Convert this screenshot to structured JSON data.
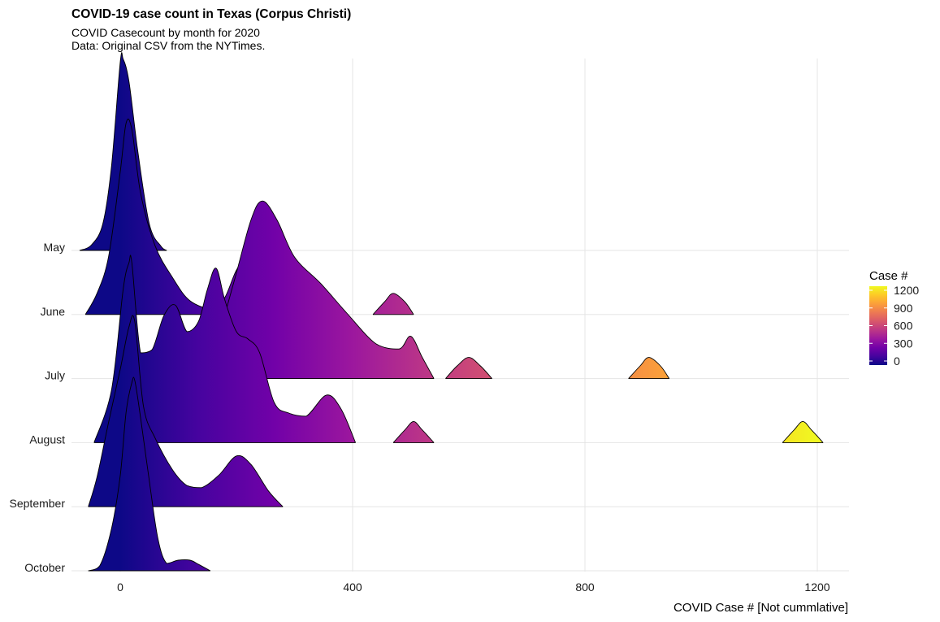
{
  "chart_data": {
    "type": "ridgeline",
    "title": "COVID-19 case count in Texas (Corpus Christi)",
    "subtitle_lines": [
      "COVID Casecount by month for 2020",
      "Data: Original CSV from the NYTimes."
    ],
    "xlabel": "COVID Case # [Not cummlative]",
    "ylabel": "",
    "xlim": [
      -80,
      1250
    ],
    "x_ticks": [
      0,
      400,
      800,
      1200
    ],
    "grid": true,
    "categories": [
      "May",
      "June",
      "July",
      "August",
      "September",
      "October"
    ],
    "series": [
      {
        "name": "May",
        "segments": [
          {
            "x": [
              -70,
              -50,
              -30,
              -15,
              0,
              5,
              15,
              30,
              50,
              70,
              80
            ],
            "y": [
              0,
              0.05,
              0.25,
              0.8,
              1.78,
              1.81,
              1.6,
              0.95,
              0.25,
              0.04,
              0
            ]
          }
        ]
      },
      {
        "name": "June",
        "segments": [
          {
            "x": [
              -60,
              -40,
              -20,
              0,
              10,
              20,
              35,
              60,
              90,
              120,
              160,
              180,
              200,
              215,
              235,
              270,
              300,
              310
            ],
            "y": [
              0,
              0.2,
              0.55,
              1.35,
              1.81,
              1.75,
              1.15,
              0.65,
              0.35,
              0.13,
              0.05,
              0.16,
              0.42,
              0.5,
              0.37,
              0.13,
              0.03,
              0
            ]
          },
          {
            "x": [
              435,
              455,
              470,
              490,
              505
            ],
            "y": [
              0,
              0.12,
              0.2,
              0.12,
              0
            ]
          }
        ]
      },
      {
        "name": "July",
        "segments": [
          {
            "x": [
              30,
              45,
              65,
              90,
              110
            ],
            "y": [
              0,
              0.12,
              0.2,
              0.12,
              0
            ]
          },
          {
            "x": [
              130,
              160,
              195,
              225,
              245,
              270,
              300,
              345,
              390,
              440,
              480,
              500,
              520,
              540
            ],
            "y": [
              0,
              0.25,
              0.9,
              1.5,
              1.68,
              1.5,
              1.15,
              0.9,
              0.62,
              0.33,
              0.28,
              0.4,
              0.2,
              0
            ]
          },
          {
            "x": [
              560,
              580,
              600,
              620,
              640
            ],
            "y": [
              0,
              0.12,
              0.2,
              0.12,
              0
            ]
          },
          {
            "x": [
              875,
              895,
              910,
              930,
              945
            ],
            "y": [
              0,
              0.12,
              0.2,
              0.12,
              0
            ]
          }
        ]
      },
      {
        "name": "August",
        "segments": [
          {
            "x": [
              -45,
              -15,
              5,
              15,
              20,
              35,
              55,
              75,
              95,
              115,
              135,
              150,
              165,
              180,
              200,
              220,
              240,
              265,
              290,
              320,
              355,
              380,
              405
            ],
            "y": [
              0,
              0.5,
              1.45,
              1.7,
              1.7,
              0.85,
              0.88,
              1.2,
              1.3,
              1.05,
              1.15,
              1.45,
              1.65,
              1.35,
              1.05,
              0.98,
              0.85,
              0.38,
              0.28,
              0.25,
              0.45,
              0.32,
              0
            ]
          },
          {
            "x": [
              470,
              490,
              505,
              520,
              540
            ],
            "y": [
              0,
              0.12,
              0.2,
              0.12,
              0
            ]
          },
          {
            "x": [
              1140,
              1160,
              1175,
              1190,
              1210
            ],
            "y": [
              0,
              0.12,
              0.2,
              0.12,
              0
            ]
          }
        ]
      },
      {
        "name": "September",
        "segments": [
          {
            "x": [
              -55,
              -40,
              -20,
              0,
              15,
              25,
              40,
              60,
              90,
              115,
              140,
              170,
              200,
              225,
              255,
              280
            ],
            "y": [
              0,
              0.28,
              0.8,
              1.3,
              1.7,
              1.75,
              0.95,
              0.65,
              0.35,
              0.2,
              0.18,
              0.3,
              0.48,
              0.4,
              0.15,
              0
            ]
          }
        ]
      },
      {
        "name": "October",
        "segments": [
          {
            "x": [
              -55,
              -35,
              -15,
              0,
              10,
              20,
              25,
              35,
              50,
              65,
              80,
              100,
              120,
              135,
              155
            ],
            "y": [
              0,
              0.05,
              0.4,
              0.9,
              1.5,
              1.78,
              1.8,
              1.45,
              0.85,
              0.3,
              0.07,
              0.1,
              0.1,
              0.06,
              0
            ]
          }
        ]
      }
    ],
    "legend": {
      "title": "Case #",
      "position": "right",
      "ticks": [
        0,
        300,
        600,
        900,
        1200
      ],
      "color_scale": "plasma"
    },
    "colors": {
      "plasma": [
        "#0d0887",
        "#46039f",
        "#7201a8",
        "#9c179e",
        "#bd3786",
        "#d8576b",
        "#ed7953",
        "#fb9f3a",
        "#fdca26",
        "#f0f921"
      ],
      "grid": "#e5e5e5",
      "outline": "#000000"
    }
  }
}
